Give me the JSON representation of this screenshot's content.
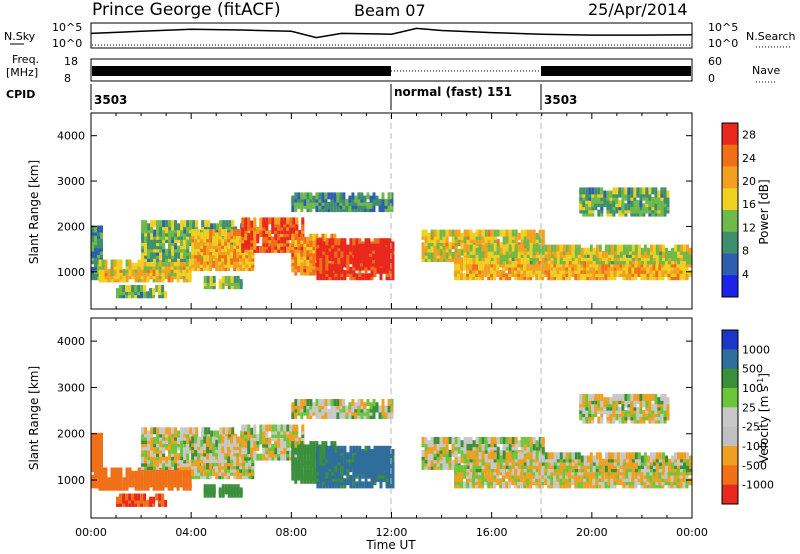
{
  "header": {
    "station": "Prince George (fitACF)",
    "beam": "Beam 07",
    "date": "25/Apr/2014"
  },
  "top_panels": {
    "nsky_label": "N.Sky",
    "nsky_ticks": [
      "10^5",
      "10^0"
    ],
    "nsearch_label": "N.Search",
    "nsearch_ticks": [
      "10^5",
      "10^0"
    ],
    "freq_label_line1": "Freq.",
    "freq_label_line2": "[MHz]",
    "freq_ticks": [
      "18",
      "8"
    ],
    "nave_label": "Nave",
    "nave_ticks": [
      "60",
      "0"
    ],
    "cpid_label": "CPID",
    "cpid_segments": [
      {
        "label": "3503",
        "start_hour": 0,
        "end_hour": 12
      },
      {
        "label": "normal (fast) 151",
        "start_hour": 12,
        "end_hour": 18
      },
      {
        "label": "3503",
        "start_hour": 18,
        "end_hour": 24
      }
    ]
  },
  "x_axis": {
    "ticks": [
      "00:00",
      "04:00",
      "08:00",
      "12:00",
      "16:00",
      "20:00",
      "00:00"
    ],
    "label": "Time UT"
  },
  "y_axis": {
    "label": "Slant Range [km]",
    "ticks": [
      "1000",
      "2000",
      "3000",
      "4000"
    ]
  },
  "power_colorbar": {
    "label": "Power [dB]",
    "ticks": [
      "4",
      "8",
      "12",
      "16",
      "20",
      "24",
      "28"
    ]
  },
  "velocity_colorbar": {
    "label_main": "Velocity [m s",
    "label_exp": "-1",
    "label_close": "]",
    "ticks": [
      "1000",
      "500",
      "100",
      "25",
      "-25",
      "-100",
      "-500",
      "-1000"
    ]
  },
  "colors": {
    "power": [
      "#1a23e6",
      "#2e5fae",
      "#3f8f6e",
      "#6fb84a",
      "#f0d020",
      "#f2a020",
      "#f07018",
      "#e8281c"
    ],
    "velocity": [
      "#1e36c8",
      "#2f6e9a",
      "#3b8f3a",
      "#6cc63a",
      "#c8c8c8",
      "#c0c0c0",
      "#f0a020",
      "#f07018",
      "#e8281c"
    ],
    "grid_dash": "#b8b8b8"
  },
  "chart_data": {
    "type": "heatmap",
    "x_range_hours": [
      0,
      24
    ],
    "y_range_km": [
      180,
      4500
    ],
    "power_range_db": [
      0,
      30
    ],
    "velocity_range_ms": [
      -1000,
      1000
    ],
    "regions": [
      {
        "t0": 0.0,
        "t1": 0.4,
        "r0": 900,
        "r1": 2000,
        "power": 10,
        "velocity": -300
      },
      {
        "t0": 0.3,
        "t1": 4.0,
        "r0": 850,
        "r1": 1250,
        "power": 18,
        "velocity": -350
      },
      {
        "t0": 1.0,
        "t1": 3.0,
        "r0": 500,
        "r1": 700,
        "power": 12,
        "velocity": -500
      },
      {
        "t0": 2.0,
        "t1": 6.0,
        "r0": 1300,
        "r1": 2100,
        "power": 12,
        "velocity": 0
      },
      {
        "t0": 4.0,
        "t1": 6.5,
        "r0": 1100,
        "r1": 1900,
        "power": 20,
        "velocity": 0
      },
      {
        "t0": 6.0,
        "t1": 8.5,
        "r0": 1500,
        "r1": 2200,
        "power": 26,
        "velocity": 0
      },
      {
        "t0": 8.0,
        "t1": 9.8,
        "r0": 1000,
        "r1": 1800,
        "power": 22,
        "velocity": 200
      },
      {
        "t0": 9.0,
        "t1": 12.0,
        "r0": 900,
        "r1": 1700,
        "power": 28,
        "velocity": 350
      },
      {
        "t0": 10.5,
        "t1": 12.0,
        "r0": 1200,
        "r1": 1600,
        "power": 30,
        "velocity": 500
      },
      {
        "t0": 8.0,
        "t1": 12.0,
        "r0": 2400,
        "r1": 2700,
        "power": 10,
        "velocity": 0
      },
      {
        "t0": 13.2,
        "t1": 18.0,
        "r0": 1300,
        "r1": 1900,
        "power": 18,
        "velocity": 0
      },
      {
        "t0": 14.5,
        "t1": 24.0,
        "r0": 900,
        "r1": 1300,
        "power": 20,
        "velocity": -20
      },
      {
        "t0": 15.0,
        "t1": 24.0,
        "r0": 1250,
        "r1": 1600,
        "power": 16,
        "velocity": 0
      },
      {
        "t0": 19.5,
        "t1": 23.0,
        "r0": 2300,
        "r1": 2800,
        "power": 12,
        "velocity": 0
      },
      {
        "t0": 4.5,
        "t1": 6.0,
        "r0": 700,
        "r1": 850,
        "power": 14,
        "velocity": 150
      }
    ],
    "nsky": [
      {
        "hour": 0,
        "value": 3.0
      },
      {
        "hour": 2,
        "value": 3.5
      },
      {
        "hour": 4,
        "value": 4.0
      },
      {
        "hour": 6,
        "value": 3.8
      },
      {
        "hour": 8,
        "value": 3.5
      },
      {
        "hour": 9,
        "value": 2.0
      },
      {
        "hour": 10,
        "value": 3.0
      },
      {
        "hour": 12,
        "value": 2.8
      },
      {
        "hour": 13,
        "value": 4.2
      },
      {
        "hour": 14,
        "value": 3.7
      },
      {
        "hour": 16,
        "value": 3.2
      },
      {
        "hour": 18,
        "value": 2.8
      },
      {
        "hour": 20,
        "value": 2.6
      },
      {
        "hour": 22,
        "value": 2.6
      },
      {
        "hour": 24,
        "value": 2.7
      }
    ]
  }
}
